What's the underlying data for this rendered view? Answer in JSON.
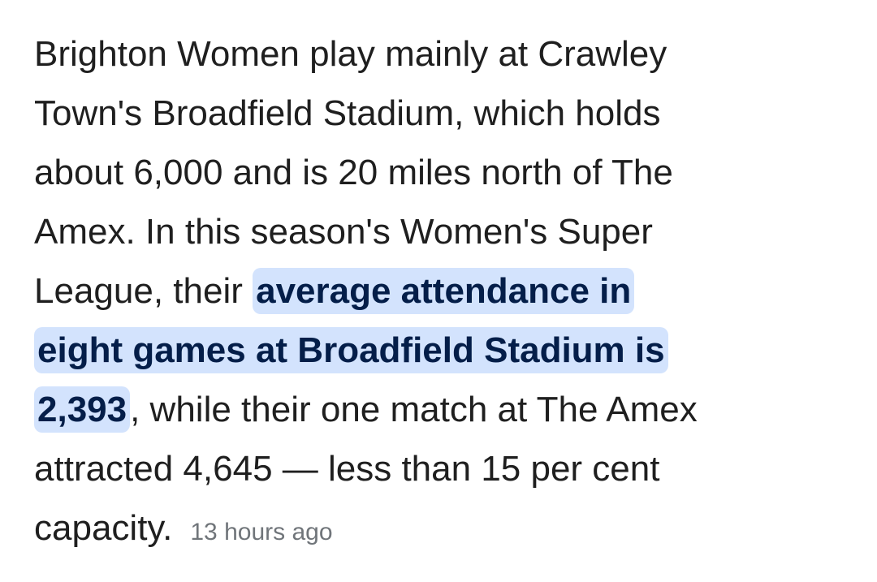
{
  "snippet": {
    "lines": [
      [
        {
          "text": "Brighton Women play mainly at Crawley",
          "highlighted": false
        }
      ],
      [
        {
          "text": "Town's Broadfield Stadium, which holds",
          "highlighted": false
        }
      ],
      [
        {
          "text": "about 6,000 and is 20 miles north of The",
          "highlighted": false
        }
      ],
      [
        {
          "text": "Amex. In this season's Women's Super",
          "highlighted": false
        }
      ],
      [
        {
          "text": "League, their ",
          "highlighted": false
        },
        {
          "text": "average attendance in",
          "highlighted": true
        }
      ],
      [
        {
          "text": "eight games at Broadfield Stadium is",
          "highlighted": true
        }
      ],
      [
        {
          "text": "2,393",
          "highlighted": true
        },
        {
          "text": ", while their one match at The Amex",
          "highlighted": false
        }
      ],
      [
        {
          "text": "attracted 4,645 — less than 15 per cent",
          "highlighted": false
        }
      ],
      [
        {
          "text": "capacity.",
          "highlighted": false
        }
      ]
    ],
    "timestamp": "13 hours ago"
  }
}
